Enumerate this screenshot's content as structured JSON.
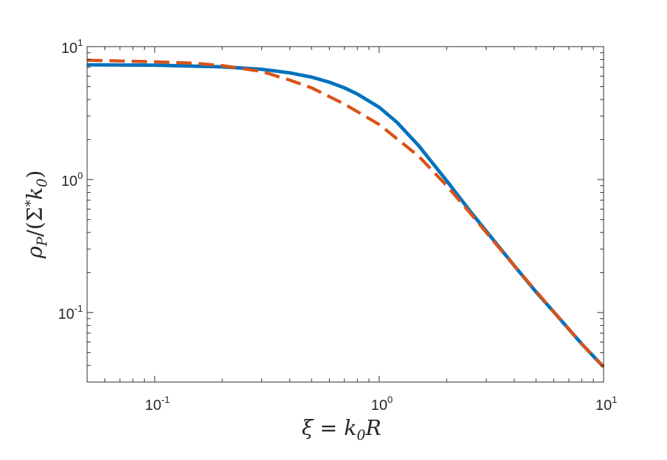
{
  "chart_data": {
    "type": "line",
    "title": "",
    "xlabel": "ξ = k₀R",
    "ylabel": "ρP/(Σ*k₀)",
    "xscale": "log",
    "yscale": "log",
    "xlim": [
      0.05,
      10
    ],
    "ylim": [
      0.03,
      10
    ],
    "xticks": [
      {
        "value": 0.1,
        "base": "10",
        "exp": "-1"
      },
      {
        "value": 1,
        "base": "10",
        "exp": "0"
      },
      {
        "value": 10,
        "base": "10",
        "exp": "1"
      }
    ],
    "yticks": [
      {
        "value": 0.1,
        "base": "10",
        "exp": "-1"
      },
      {
        "value": 1,
        "base": "10",
        "exp": "0"
      },
      {
        "value": 10,
        "base": "10",
        "exp": "1"
      }
    ],
    "grid": false,
    "box": true,
    "series": [
      {
        "style": "solid",
        "color": "#0072BD",
        "x": [
          0.05,
          0.1,
          0.2,
          0.3,
          0.4,
          0.5,
          0.6,
          0.7,
          0.8,
          1.0,
          1.2,
          1.5,
          2.0,
          2.5,
          3.0,
          4.0,
          5.0,
          6.0,
          8.0,
          10.0
        ],
        "y": [
          7.3,
          7.25,
          7.05,
          6.75,
          6.35,
          5.9,
          5.4,
          4.9,
          4.4,
          3.5,
          2.7,
          1.8,
          0.98,
          0.6,
          0.41,
          0.225,
          0.143,
          0.101,
          0.058,
          0.039
        ]
      },
      {
        "style": "dashed",
        "color": "#D95319",
        "x": [
          0.05,
          0.1,
          0.15,
          0.2,
          0.3,
          0.4,
          0.5,
          0.7,
          1.0,
          1.5,
          2.0,
          2.5,
          3.0,
          4.0,
          5.0,
          6.0,
          8.0,
          10.0
        ],
        "y": [
          7.9,
          7.7,
          7.5,
          7.2,
          6.5,
          5.6,
          4.9,
          3.7,
          2.6,
          1.5,
          0.9,
          0.58,
          0.4,
          0.225,
          0.145,
          0.101,
          0.058,
          0.039
        ]
      }
    ]
  }
}
